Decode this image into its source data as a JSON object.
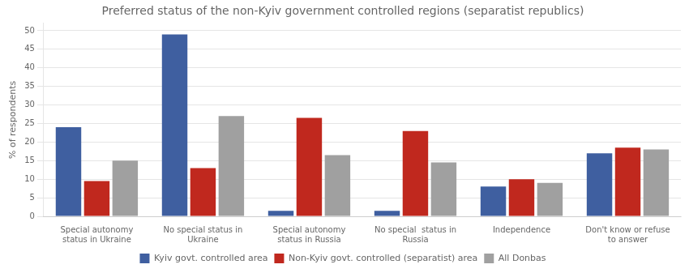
{
  "chart_data": {
    "type": "bar",
    "title": "Preferred status of the non-Kyiv government controlled regions (separatist republics)",
    "ylabel": "% of respondents",
    "categories": [
      "Special autonomy\nstatus in Ukraine",
      "No special status in\nUkraine",
      "Special autonomy\nstatus in Russia",
      "No special  status in\nRussia",
      "Independence",
      "Don't know or refuse\nto answer"
    ],
    "series": [
      {
        "name": "Kyiv govt. controlled area",
        "color": "#3f5fa0",
        "values": [
          24,
          49,
          1.5,
          1.5,
          8,
          17
        ]
      },
      {
        "name": "Non-Kyiv govt. controlled (separatist) area",
        "color": "#c0281e",
        "values": [
          9.5,
          13,
          26.5,
          23,
          10,
          18.5
        ]
      },
      {
        "name": "All Donbas",
        "color": "#a0a0a0",
        "values": [
          15,
          27,
          16.5,
          14.5,
          9,
          18
        ]
      }
    ],
    "ylim": [
      0,
      52
    ],
    "yticks": [
      0,
      5,
      10,
      15,
      20,
      25,
      30,
      35,
      40,
      45,
      50
    ],
    "grid": true,
    "legend": "bottom"
  }
}
